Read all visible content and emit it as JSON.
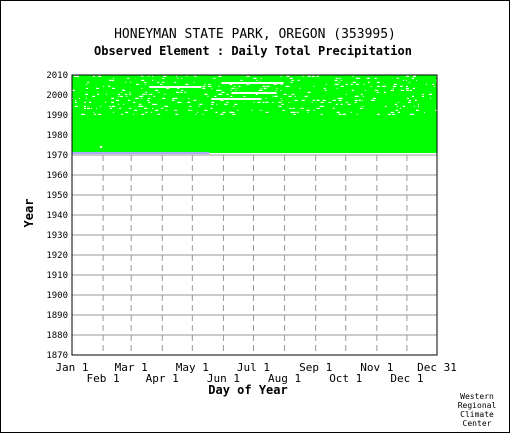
{
  "chart_data": {
    "type": "heatmap",
    "title": "HONEYMAN STATE PARK, OREGON   (353995)",
    "subtitle": "Observed Element : Daily Total Precipitation",
    "xlabel": "Day of Year",
    "ylabel": "Year",
    "x_range_day_of_year": [
      1,
      365
    ],
    "ylim": [
      1870,
      2010
    ],
    "y_ticks": [
      1870,
      1880,
      1890,
      1900,
      1910,
      1920,
      1930,
      1940,
      1950,
      1960,
      1970,
      1980,
      1990,
      2000,
      2010
    ],
    "x_ticks_top_row": [
      "Jan 1",
      "Mar 1",
      "May 1",
      "Jul 1",
      "Sep 1",
      "Nov 1",
      "Dec 31"
    ],
    "x_ticks_bottom_row": [
      "Feb 1",
      "Apr 1",
      "Jun 1",
      "Aug 1",
      "Oct 1",
      "Dec 1"
    ],
    "grid": true,
    "colors": {
      "observed": "#00ff00",
      "grid": "#999999",
      "missing": "#ffffff",
      "partial_record": "#aaaaff"
    },
    "series": [
      {
        "type": "observed_block",
        "years": [
          1971,
          2010
        ],
        "days": [
          1,
          365
        ]
      },
      {
        "type": "partial_record",
        "year": 1971,
        "days": [
          1,
          138
        ]
      }
    ],
    "gaps": [
      {
        "year": 2006,
        "days": [
          150,
          212
        ]
      },
      {
        "year": 2004,
        "days": [
          78,
          130
        ]
      },
      {
        "year": 2001,
        "days": [
          160,
          205
        ]
      },
      {
        "year": 1998,
        "days": [
          140,
          190
        ]
      },
      {
        "year": 1974,
        "days": [
          29,
          31
        ]
      }
    ],
    "credit": [
      "Western",
      "Regional",
      "Climate",
      "Center"
    ]
  }
}
